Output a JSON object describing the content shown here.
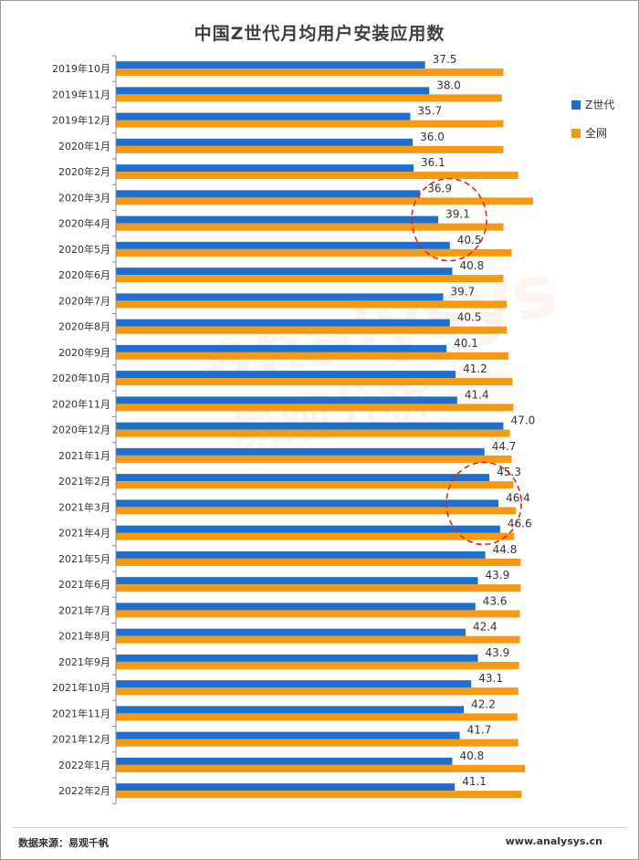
{
  "chart_data": {
    "type": "bar",
    "orientation": "horizontal",
    "title": "中国Z世代月均用户安装应用数",
    "categories": [
      "2019年10月",
      "2019年11月",
      "2019年12月",
      "2020年1月",
      "2020年2月",
      "2020年3月",
      "2020年4月",
      "2020年5月",
      "2020年6月",
      "2020年7月",
      "2020年8月",
      "2020年9月",
      "2020年10月",
      "2020年11月",
      "2020年12月",
      "2021年1月",
      "2021年2月",
      "2021年3月",
      "2021年4月",
      "2021年5月",
      "2021年6月",
      "2021年7月",
      "2021年8月",
      "2021年9月",
      "2021年10月",
      "2021年11月",
      "2021年12月",
      "2022年1月",
      "2022年2月"
    ],
    "series": [
      {
        "name": "Z世代",
        "color": "#1f6fcf",
        "labeled": true,
        "values": [
          37.5,
          38.0,
          35.7,
          36.0,
          36.1,
          36.9,
          39.1,
          40.5,
          40.8,
          39.7,
          40.5,
          40.1,
          41.2,
          41.4,
          47.0,
          44.7,
          45.3,
          46.4,
          46.6,
          44.8,
          43.9,
          43.6,
          42.4,
          43.9,
          43.1,
          42.2,
          41.7,
          40.8,
          41.1
        ]
      },
      {
        "name": "全网",
        "color": "#f59a12",
        "labeled": false,
        "values": [
          47.0,
          46.8,
          47.0,
          47.0,
          48.8,
          50.6,
          47.0,
          48.0,
          47.0,
          47.4,
          47.4,
          47.6,
          48.1,
          48.2,
          47.8,
          48.0,
          48.2,
          48.5,
          48.3,
          49.1,
          49.1,
          49.0,
          49.0,
          48.9,
          48.8,
          48.7,
          48.8,
          49.6,
          49.2
        ]
      }
    ],
    "xlim": [
      0,
      50.6
    ],
    "legend": "right",
    "annotations": [
      "dashed-red-circle 2020年3月–2020年5月",
      "dashed-red-circle 2021年2月–2021年4月"
    ]
  },
  "watermark": {
    "line1": "analysys",
    "line2": "易观分析"
  },
  "footer": {
    "source": "数据来源：易观千帆",
    "website": "www.analysys.cn"
  }
}
